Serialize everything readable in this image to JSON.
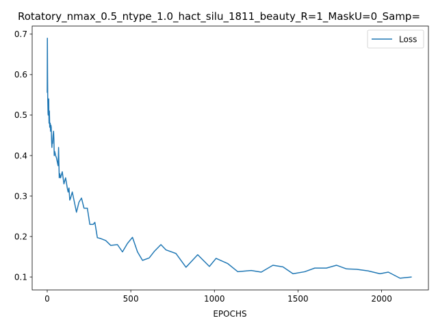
{
  "chart_data": {
    "type": "line",
    "title": "Rotatory_nmax_0.5_ntype_1.0_hact_silu_1811_beauty_R=1_MaskU=0_Samp=",
    "xlabel": "EPOCHS",
    "ylabel": "",
    "xlim": [
      -90,
      2280
    ],
    "ylim": [
      0.068,
      0.72
    ],
    "xticks": [
      0,
      500,
      1000,
      1500,
      2000
    ],
    "yticks": [
      0.1,
      0.2,
      0.3,
      0.4,
      0.5,
      0.6,
      0.7
    ],
    "xtick_labels": [
      "0",
      "500",
      "1000",
      "1500",
      "2000"
    ],
    "ytick_labels": [
      "0.1",
      "0.2",
      "0.3",
      "0.4",
      "0.5",
      "0.6",
      "0.7"
    ],
    "grid": false,
    "legend_position": "top-right",
    "series": [
      {
        "name": "Loss",
        "color": "#1f77b4",
        "x": [
          0,
          1,
          2,
          3,
          4,
          5,
          6,
          7,
          8,
          9,
          10,
          11,
          12,
          13,
          14,
          15,
          16,
          18,
          20,
          22,
          24,
          26,
          28,
          30,
          32,
          35,
          38,
          40,
          42,
          45,
          48,
          50,
          55,
          60,
          65,
          68,
          70,
          72,
          75,
          80,
          90,
          100,
          110,
          120,
          125,
          130,
          135,
          140,
          150,
          160,
          175,
          190,
          205,
          220,
          240,
          255,
          275,
          285,
          300,
          320,
          350,
          380,
          420,
          450,
          480,
          510,
          540,
          570,
          610,
          640,
          680,
          710,
          770,
          830,
          900,
          970,
          1010,
          1080,
          1140,
          1220,
          1280,
          1350,
          1410,
          1470,
          1540,
          1600,
          1670,
          1730,
          1790,
          1850,
          1920,
          1990,
          2040,
          2110,
          2180
        ],
        "values": [
          0.555,
          0.69,
          0.6,
          0.545,
          0.525,
          0.505,
          0.5,
          0.51,
          0.52,
          0.54,
          0.5,
          0.48,
          0.49,
          0.51,
          0.49,
          0.47,
          0.48,
          0.48,
          0.46,
          0.475,
          0.47,
          0.44,
          0.42,
          0.435,
          0.43,
          0.45,
          0.46,
          0.44,
          0.4,
          0.41,
          0.405,
          0.4,
          0.395,
          0.385,
          0.375,
          0.42,
          0.38,
          0.345,
          0.355,
          0.345,
          0.36,
          0.33,
          0.345,
          0.32,
          0.31,
          0.32,
          0.29,
          0.295,
          0.31,
          0.29,
          0.26,
          0.285,
          0.295,
          0.27,
          0.27,
          0.23,
          0.23,
          0.235,
          0.197,
          0.195,
          0.19,
          0.178,
          0.18,
          0.162,
          0.183,
          0.198,
          0.162,
          0.141,
          0.147,
          0.163,
          0.18,
          0.167,
          0.158,
          0.124,
          0.155,
          0.126,
          0.146,
          0.133,
          0.113,
          0.116,
          0.112,
          0.129,
          0.125,
          0.108,
          0.113,
          0.122,
          0.122,
          0.129,
          0.12,
          0.119,
          0.115,
          0.108,
          0.112,
          0.097,
          0.1
        ]
      }
    ]
  }
}
